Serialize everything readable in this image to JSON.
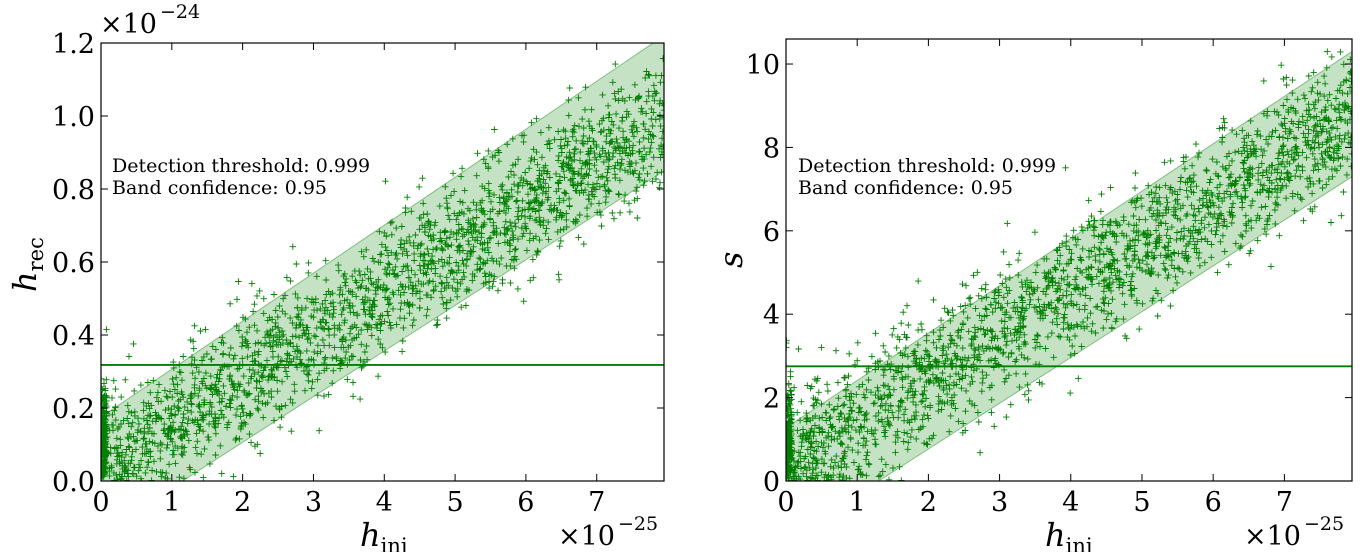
{
  "chart_data": [
    {
      "type": "scatter",
      "xlabel": "h",
      "xlabel_sub": "inj",
      "ylabel": "h",
      "ylabel_sub": "rec",
      "x_multiplier": {
        "base": "×10",
        "exp": "−25"
      },
      "y_multiplier": {
        "base": "×10",
        "exp": "−24"
      },
      "xlim": [
        0,
        7.95
      ],
      "ylim": [
        0,
        1.2
      ],
      "xticks": [
        0,
        1,
        2,
        3,
        4,
        5,
        6,
        7
      ],
      "xtick_labels": [
        "0",
        "1",
        "2",
        "3",
        "4",
        "5",
        "6",
        "7"
      ],
      "yticks": [
        0,
        0.2,
        0.4,
        0.6,
        0.8,
        1.0,
        1.2
      ],
      "ytick_labels": [
        "0.0",
        "0.2",
        "0.4",
        "0.6",
        "0.8",
        "1.0",
        "1.2"
      ],
      "annotations": [
        "Detection threshold: 0.999",
        "Band confidence: 0.95"
      ],
      "threshold": 0.318,
      "band": {
        "x": [
          1.15,
          7.95
        ],
        "upper": [
          0.326,
          1.22
        ],
        "lower": [
          0.0,
          0.85
        ]
      },
      "trend": {
        "slope": 0.1195,
        "intercept": 0.04,
        "spread": 0.09,
        "noise_floor": 0.3
      },
      "n_points": 2200,
      "seed": 7,
      "color": "#007f00",
      "band_color": "#7fbf7f",
      "grid": false
    },
    {
      "type": "scatter",
      "xlabel": "h",
      "xlabel_sub": "inj",
      "ylabel": "s",
      "ylabel_sub": "",
      "x_multiplier": {
        "base": "×10",
        "exp": "−25"
      },
      "y_multiplier": null,
      "xlim": [
        0,
        7.95
      ],
      "ylim": [
        0,
        10.6
      ],
      "xticks": [
        0,
        1,
        2,
        3,
        4,
        5,
        6,
        7
      ],
      "xtick_labels": [
        "0",
        "1",
        "2",
        "3",
        "4",
        "5",
        "6",
        "7"
      ],
      "yticks": [
        0,
        2,
        4,
        6,
        8,
        10
      ],
      "ytick_labels": [
        "0",
        "2",
        "4",
        "6",
        "8",
        "10"
      ],
      "annotations": [
        "Detection threshold: 0.999",
        "Band confidence: 0.95"
      ],
      "threshold": 2.75,
      "band": {
        "x": [
          1.3,
          7.95
        ],
        "upper": [
          2.75,
          10.3
        ],
        "lower": [
          0.0,
          7.3
        ]
      },
      "trend": {
        "slope": 1.06,
        "intercept": 0.35,
        "spread": 0.8,
        "noise_floor": 2.6
      },
      "n_points": 2200,
      "seed": 11,
      "color": "#007f00",
      "band_color": "#7fbf7f",
      "grid": false
    }
  ]
}
